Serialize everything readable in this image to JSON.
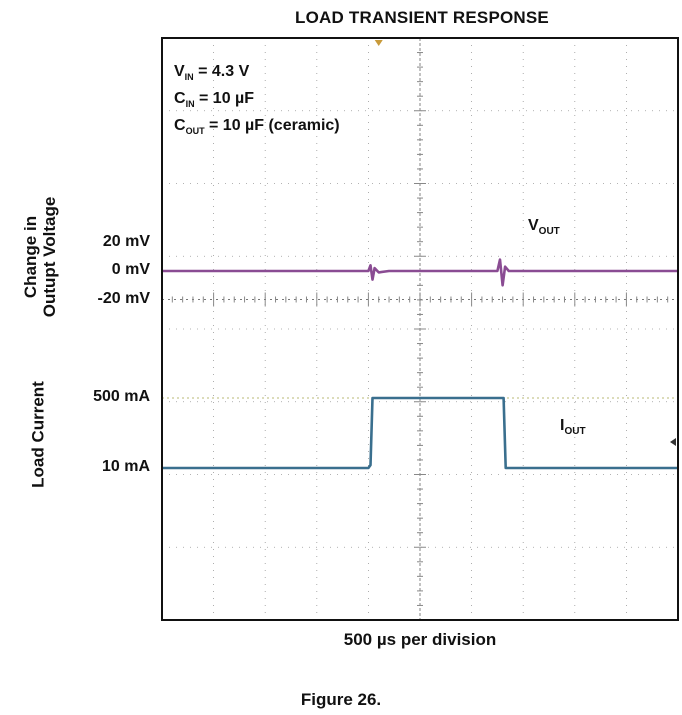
{
  "chart_data": {
    "type": "line",
    "title": "LOAD TRANSIENT RESPONSE",
    "xlabel": "500 µs per division",
    "figure_caption": "Figure 26.",
    "conditions": [
      {
        "sym": "V",
        "sub": "IN",
        "rest": " = 4.3 V"
      },
      {
        "sym": "C",
        "sub": "IN",
        "rest": " = 10 µF"
      },
      {
        "sym": "C",
        "sub": "OUT",
        "rest": " = 10 µF (ceramic)"
      }
    ],
    "x_divisions": 10,
    "y_divisions": 8,
    "ylabel_voltage": [
      "Change in",
      "Outupt Voltage"
    ],
    "ylabel_current": "Load Current",
    "voltage_ticks": [
      {
        "label": "20 mV",
        "value": 20
      },
      {
        "label": "0 mV",
        "value": 0
      },
      {
        "label": "-20 mV",
        "value": -20
      }
    ],
    "current_ticks": [
      {
        "label": "500 mA",
        "value": 500
      },
      {
        "label": "10 mA",
        "value": 10
      }
    ],
    "series": [
      {
        "name": "V_OUT",
        "label_sym": "V",
        "label_sub": "OUT",
        "color": "#8a4c93",
        "unit": "mV",
        "x_div": [
          0,
          4.0,
          4.04,
          4.08,
          4.12,
          4.2,
          4.4,
          6.5,
          6.55,
          6.6,
          6.65,
          6.72,
          10
        ],
        "values": [
          0,
          0,
          4,
          -6,
          2,
          -1,
          0,
          0,
          8,
          -10,
          3,
          0,
          0
        ]
      },
      {
        "name": "I_OUT",
        "label_sym": "I",
        "label_sub": "OUT",
        "color": "#3a6f8e",
        "unit": "mA",
        "x_div": [
          0,
          4.0,
          4.04,
          4.08,
          6.58,
          6.62,
          6.66,
          10
        ],
        "values": [
          10,
          10,
          30,
          500,
          500,
          500,
          10,
          10
        ]
      }
    ],
    "colors": {
      "grid": "#9a9a9a",
      "frame": "#111111",
      "reference_line": "#c8c890"
    }
  }
}
